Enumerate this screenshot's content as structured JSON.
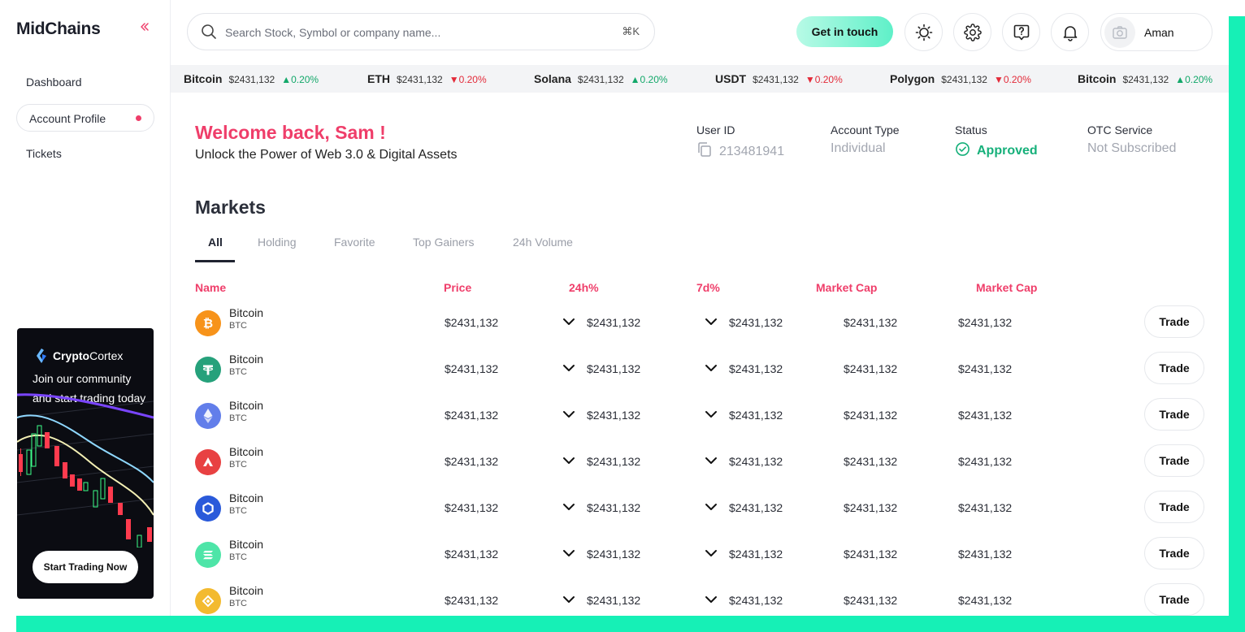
{
  "app": {
    "logo": "MidChains"
  },
  "sidebar": {
    "items": [
      {
        "label": "Dashboard"
      },
      {
        "label": "Account Profile"
      },
      {
        "label": "Tickets"
      }
    ],
    "promo": {
      "brand_bold": "Crypto",
      "brand_rest": "Cortex",
      "text": "Join our community and start trading today",
      "button": "Start Trading Now"
    }
  },
  "header": {
    "search_placeholder": "Search Stock, Symbol or company name...",
    "search_shortcut": "⌘K",
    "contact_button": "Get in touch",
    "user_name": "Aman"
  },
  "ticker": [
    {
      "name": "Bitcoin",
      "price": "$2431,132",
      "change": "0.20%",
      "dir": "up"
    },
    {
      "name": "ETH",
      "price": "$2431,132",
      "change": "0.20%",
      "dir": "down"
    },
    {
      "name": "Solana",
      "price": "$2431,132",
      "change": "0.20%",
      "dir": "up"
    },
    {
      "name": "USDT",
      "price": "$2431,132",
      "change": "0.20%",
      "dir": "down"
    },
    {
      "name": "Polygon",
      "price": "$2431,132",
      "change": "0.20%",
      "dir": "down"
    },
    {
      "name": "Bitcoin",
      "price": "$2431,132",
      "change": "0.20%",
      "dir": "up"
    }
  ],
  "welcome": {
    "title": "Welcome back, Sam !",
    "subtitle": "Unlock the Power of Web 3.0 & Digital Assets"
  },
  "account": {
    "user_id_label": "User ID",
    "user_id": "213481941",
    "type_label": "Account Type",
    "type": "Individual",
    "status_label": "Status",
    "status": "Approved",
    "otc_label": "OTC Service",
    "otc": "Not Subscribed"
  },
  "markets": {
    "title": "Markets",
    "tabs": [
      "All",
      "Holding",
      "Favorite",
      "Top Gainers",
      "24h Volume"
    ],
    "columns": [
      "Name",
      "Price",
      "24h%",
      "7d%",
      "Market Cap",
      "Market Cap"
    ],
    "trade_label": "Trade",
    "rows": [
      {
        "name": "Bitcoin",
        "symbol": "BTC",
        "icon": "bitcoin-icon",
        "price": "$2431,132",
        "h24": "$2431,132",
        "d7": "$2431,132",
        "cap1": "$2431,132",
        "cap2": "$2431,132"
      },
      {
        "name": "Bitcoin",
        "symbol": "BTC",
        "icon": "tether-icon",
        "price": "$2431,132",
        "h24": "$2431,132",
        "d7": "$2431,132",
        "cap1": "$2431,132",
        "cap2": "$2431,132"
      },
      {
        "name": "Bitcoin",
        "symbol": "BTC",
        "icon": "ethereum-icon",
        "price": "$2431,132",
        "h24": "$2431,132",
        "d7": "$2431,132",
        "cap1": "$2431,132",
        "cap2": "$2431,132"
      },
      {
        "name": "Bitcoin",
        "symbol": "BTC",
        "icon": "avalanche-icon",
        "price": "$2431,132",
        "h24": "$2431,132",
        "d7": "$2431,132",
        "cap1": "$2431,132",
        "cap2": "$2431,132"
      },
      {
        "name": "Bitcoin",
        "symbol": "BTC",
        "icon": "chainlink-icon",
        "price": "$2431,132",
        "h24": "$2431,132",
        "d7": "$2431,132",
        "cap1": "$2431,132",
        "cap2": "$2431,132"
      },
      {
        "name": "Bitcoin",
        "symbol": "BTC",
        "icon": "solana-icon",
        "price": "$2431,132",
        "h24": "$2431,132",
        "d7": "$2431,132",
        "cap1": "$2431,132",
        "cap2": "$2431,132"
      },
      {
        "name": "Bitcoin",
        "symbol": "BTC",
        "icon": "bnb-icon",
        "price": "$2431,132",
        "h24": "$2431,132",
        "d7": "$2431,132",
        "cap1": "$2431,132",
        "cap2": "$2431,132"
      }
    ]
  },
  "colors": {
    "accent": "#ef3e6a",
    "frame": "#16f0b6",
    "up": "#13a86a",
    "down": "#e32b3a"
  }
}
